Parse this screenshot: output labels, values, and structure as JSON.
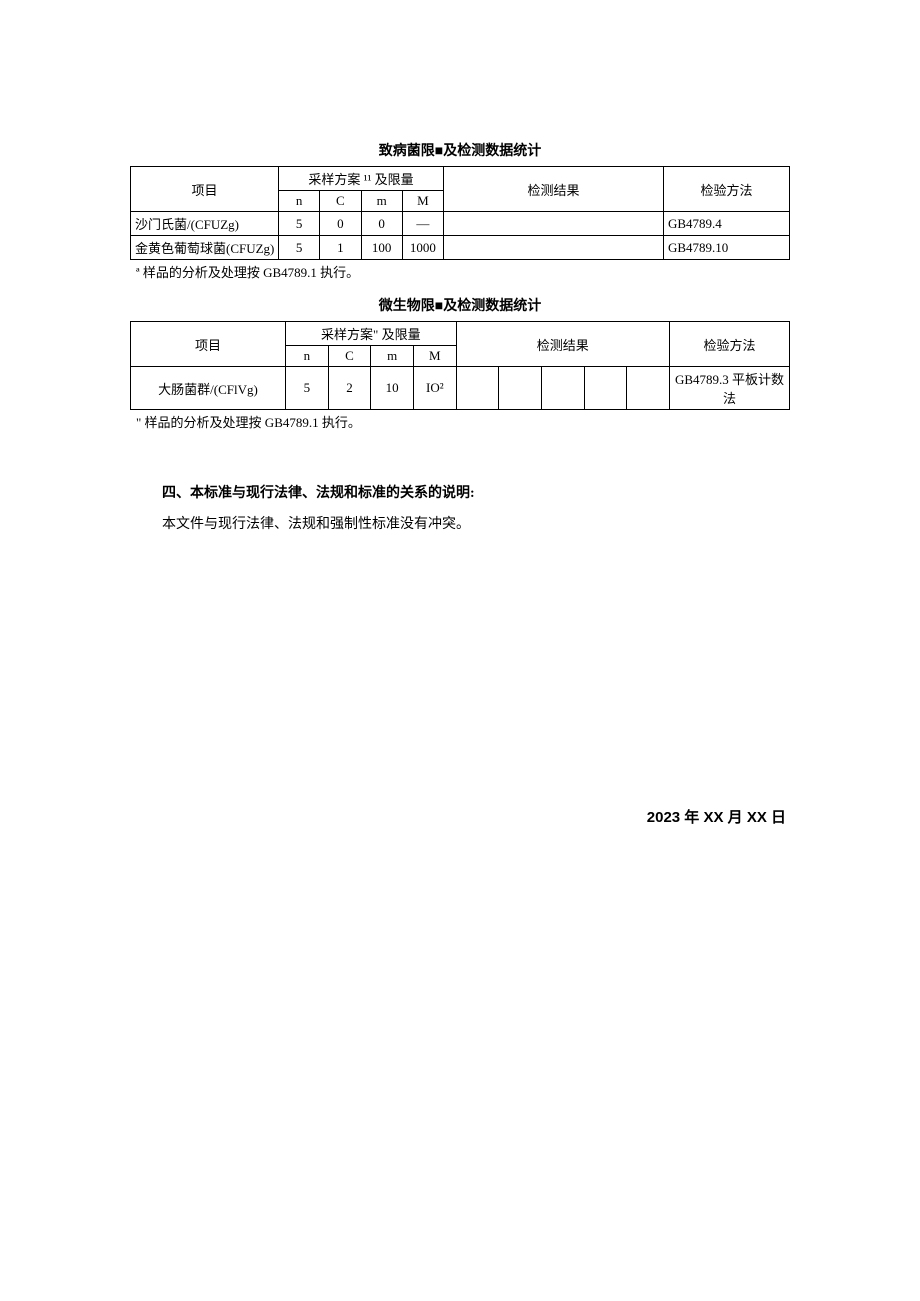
{
  "table1": {
    "title": "致病菌限■及检测数据统计",
    "header": {
      "col_project": "项目",
      "col_sampling": "采样方案 ¹¹ 及限量",
      "col_n": "n",
      "col_c": "C",
      "col_m": "m",
      "col_M": "M",
      "col_result": "检测结果",
      "col_method": "检验方法"
    },
    "rows": [
      {
        "project": "沙门氏菌/(CFUZg)",
        "n": "5",
        "c": "0",
        "m": "0",
        "M": "—",
        "result": "",
        "method": "GB4789.4"
      },
      {
        "project": "金黄色葡萄球菌(CFUZg)",
        "n": "5",
        "c": "1",
        "m": "100",
        "M": "1000",
        "result": "",
        "method": "GB4789.10"
      }
    ],
    "note": "ª 样品的分析及处理按 GB4789.1 执行。"
  },
  "table2": {
    "title": "微生物限■及检测数据统计",
    "header": {
      "col_project": "项目",
      "col_sampling": "采样方案\" 及限量",
      "col_n": "n",
      "col_c": "C",
      "col_m": "m",
      "col_M": "M",
      "col_result": "检测结果",
      "col_method": "检验方法"
    },
    "rows": [
      {
        "project": "大肠菌群/(CFlVg)",
        "n": "5",
        "c": "2",
        "m": "10",
        "M": "IO²",
        "method": "GB4789.3 平板计数法"
      }
    ],
    "note": "\" 样品的分析及处理按 GB4789.1 执行。"
  },
  "section4": {
    "heading": "四、本标准与现行法律、法规和标准的关系的说明:",
    "body": "本文件与现行法律、法规和强制性标准没有冲突。"
  },
  "date": "2023 年 XX 月 XX 日"
}
